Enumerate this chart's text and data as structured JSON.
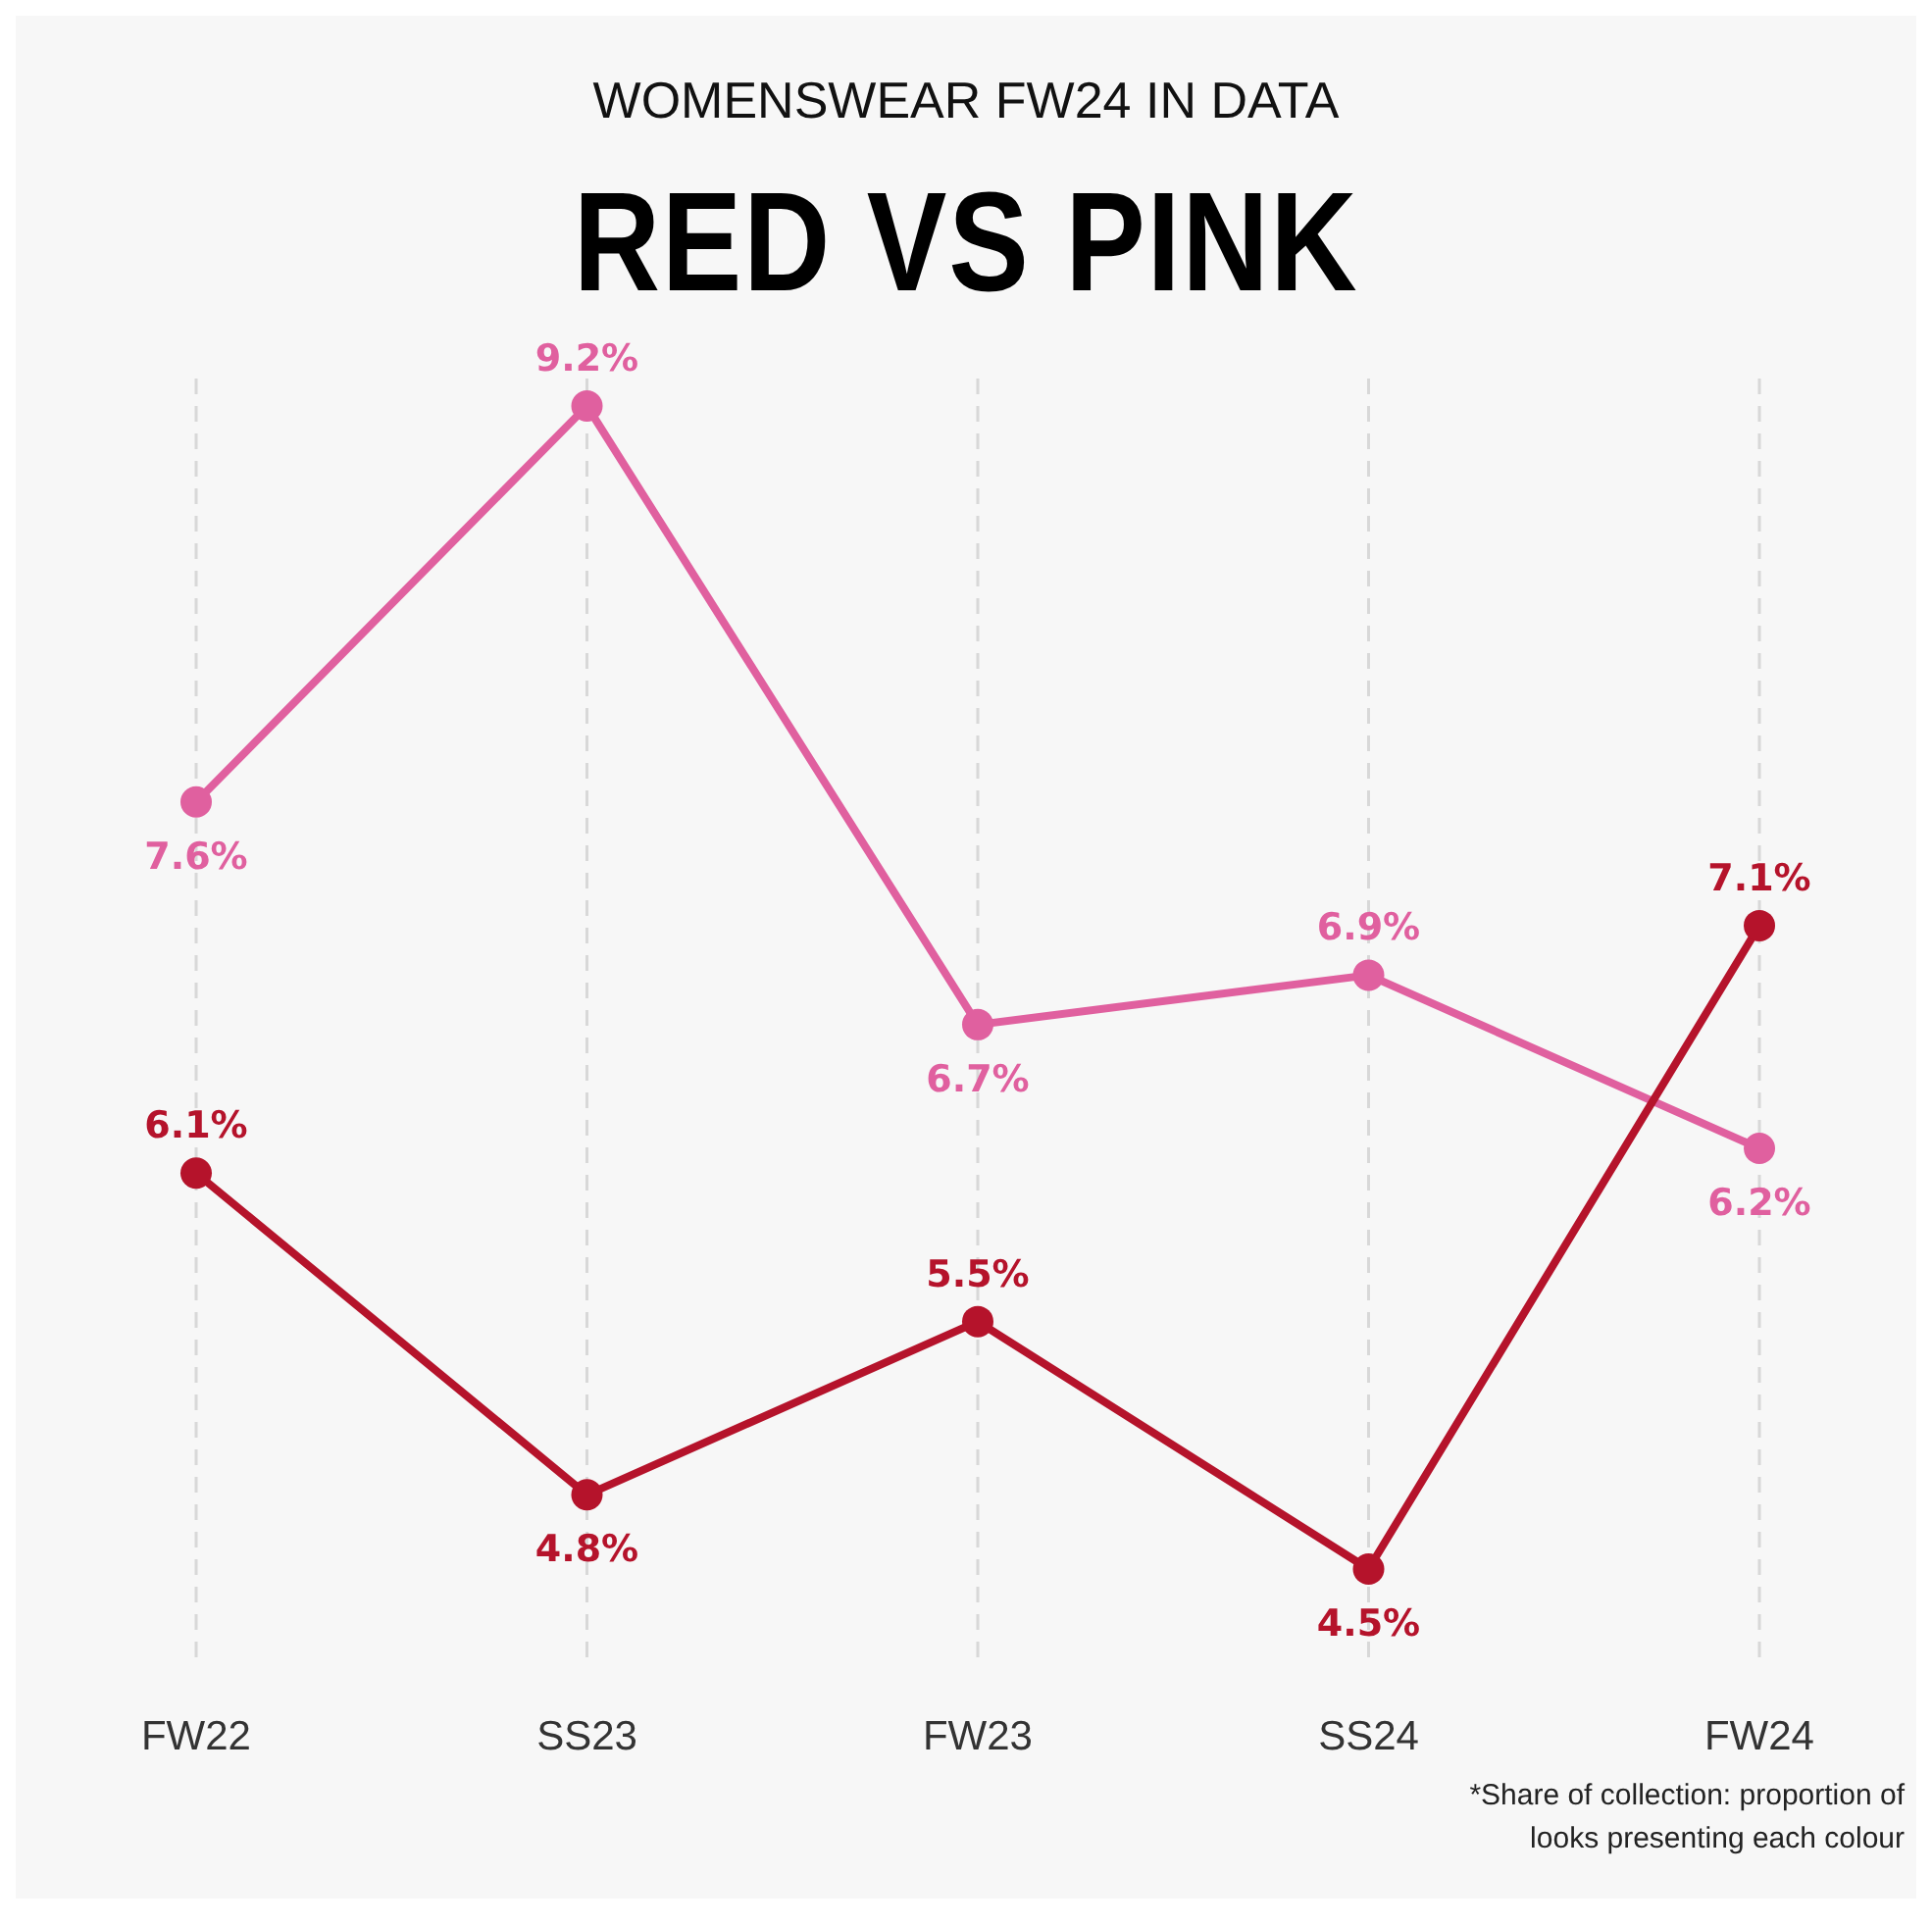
{
  "chart_data": {
    "type": "line",
    "subtitle": "WOMENSWEAR FW24 IN DATA",
    "title": "RED VS PINK",
    "categories": [
      "FW22",
      "SS23",
      "FW23",
      "SS24",
      "FW24"
    ],
    "series": [
      {
        "color": "#e0609f",
        "values": [
          7.6,
          9.2,
          6.7,
          6.9,
          6.2
        ],
        "value_labels": [
          "7.6%",
          "9.2%",
          "6.7%",
          "6.9%",
          "6.2%"
        ]
      },
      {
        "color": "#b5132b",
        "values": [
          6.1,
          4.8,
          5.5,
          4.5,
          7.1
        ],
        "value_labels": [
          "6.1%",
          "4.8%",
          "5.5%",
          "4.5%",
          "7.1%"
        ]
      }
    ],
    "marker": "circle",
    "grid": "x",
    "annotations": [
      "*Share of collection: proportion of looks presenting each colour"
    ]
  }
}
